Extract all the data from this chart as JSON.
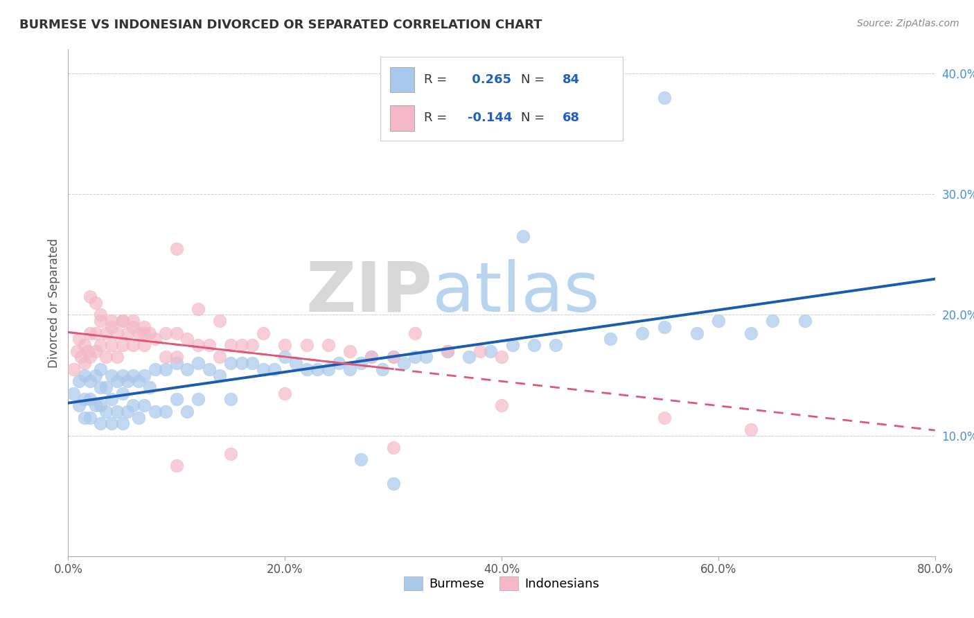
{
  "title": "BURMESE VS INDONESIAN DIVORCED OR SEPARATED CORRELATION CHART",
  "source": "Source: ZipAtlas.com",
  "ylabel": "Divorced or Separated",
  "xlabel_burmese": "Burmese",
  "xlabel_indonesian": "Indonesians",
  "xlim": [
    0,
    0.8
  ],
  "ylim": [
    0,
    0.42
  ],
  "xtick_vals": [
    0.0,
    0.2,
    0.4,
    0.6,
    0.8
  ],
  "ytick_vals": [
    0.1,
    0.2,
    0.3,
    0.4
  ],
  "blue_R": "0.265",
  "blue_N": "84",
  "pink_R": "-0.144",
  "pink_N": "68",
  "blue_color": "#A8C8EC",
  "pink_color": "#F4B8C8",
  "blue_line_color": "#1A5CB0",
  "pink_line_color": "#E05878",
  "blue_scatter_x": [
    0.005,
    0.01,
    0.01,
    0.015,
    0.015,
    0.015,
    0.02,
    0.02,
    0.02,
    0.025,
    0.025,
    0.03,
    0.03,
    0.03,
    0.03,
    0.035,
    0.035,
    0.04,
    0.04,
    0.04,
    0.045,
    0.045,
    0.05,
    0.05,
    0.05,
    0.055,
    0.055,
    0.06,
    0.06,
    0.065,
    0.065,
    0.07,
    0.07,
    0.075,
    0.08,
    0.08,
    0.09,
    0.09,
    0.1,
    0.1,
    0.11,
    0.11,
    0.12,
    0.12,
    0.13,
    0.14,
    0.15,
    0.15,
    0.16,
    0.17,
    0.18,
    0.19,
    0.2,
    0.21,
    0.22,
    0.23,
    0.24,
    0.25,
    0.26,
    0.27,
    0.28,
    0.29,
    0.3,
    0.31,
    0.32,
    0.33,
    0.35,
    0.37,
    0.39,
    0.41,
    0.43,
    0.45,
    0.5,
    0.53,
    0.55,
    0.58,
    0.6,
    0.63,
    0.65,
    0.68,
    0.55,
    0.42,
    0.27,
    0.3
  ],
  "blue_scatter_y": [
    0.135,
    0.145,
    0.125,
    0.15,
    0.13,
    0.115,
    0.145,
    0.13,
    0.115,
    0.15,
    0.125,
    0.155,
    0.14,
    0.125,
    0.11,
    0.14,
    0.12,
    0.15,
    0.13,
    0.11,
    0.145,
    0.12,
    0.15,
    0.135,
    0.11,
    0.145,
    0.12,
    0.15,
    0.125,
    0.145,
    0.115,
    0.15,
    0.125,
    0.14,
    0.155,
    0.12,
    0.155,
    0.12,
    0.16,
    0.13,
    0.155,
    0.12,
    0.16,
    0.13,
    0.155,
    0.15,
    0.16,
    0.13,
    0.16,
    0.16,
    0.155,
    0.155,
    0.165,
    0.16,
    0.155,
    0.155,
    0.155,
    0.16,
    0.155,
    0.16,
    0.165,
    0.155,
    0.165,
    0.16,
    0.165,
    0.165,
    0.17,
    0.165,
    0.17,
    0.175,
    0.175,
    0.175,
    0.18,
    0.185,
    0.19,
    0.185,
    0.195,
    0.185,
    0.195,
    0.195,
    0.38,
    0.265,
    0.08,
    0.06
  ],
  "pink_scatter_x": [
    0.005,
    0.008,
    0.01,
    0.012,
    0.015,
    0.015,
    0.018,
    0.02,
    0.02,
    0.025,
    0.025,
    0.03,
    0.03,
    0.035,
    0.035,
    0.04,
    0.04,
    0.045,
    0.045,
    0.05,
    0.05,
    0.055,
    0.06,
    0.06,
    0.065,
    0.07,
    0.07,
    0.075,
    0.08,
    0.09,
    0.09,
    0.1,
    0.1,
    0.11,
    0.12,
    0.13,
    0.14,
    0.15,
    0.16,
    0.17,
    0.18,
    0.2,
    0.22,
    0.24,
    0.26,
    0.28,
    0.3,
    0.32,
    0.35,
    0.38,
    0.4,
    0.02,
    0.025,
    0.03,
    0.04,
    0.05,
    0.06,
    0.07,
    0.55,
    0.63,
    0.1,
    0.15,
    0.2,
    0.1,
    0.3,
    0.12,
    0.14,
    0.4
  ],
  "pink_scatter_y": [
    0.155,
    0.17,
    0.18,
    0.165,
    0.175,
    0.16,
    0.17,
    0.185,
    0.165,
    0.185,
    0.17,
    0.195,
    0.175,
    0.185,
    0.165,
    0.195,
    0.175,
    0.185,
    0.165,
    0.195,
    0.175,
    0.185,
    0.195,
    0.175,
    0.185,
    0.19,
    0.175,
    0.185,
    0.18,
    0.185,
    0.165,
    0.185,
    0.165,
    0.18,
    0.175,
    0.175,
    0.165,
    0.175,
    0.175,
    0.175,
    0.185,
    0.175,
    0.175,
    0.175,
    0.17,
    0.165,
    0.165,
    0.185,
    0.17,
    0.17,
    0.165,
    0.215,
    0.21,
    0.2,
    0.19,
    0.195,
    0.19,
    0.185,
    0.115,
    0.105,
    0.075,
    0.085,
    0.135,
    0.255,
    0.09,
    0.205,
    0.195,
    0.125
  ]
}
